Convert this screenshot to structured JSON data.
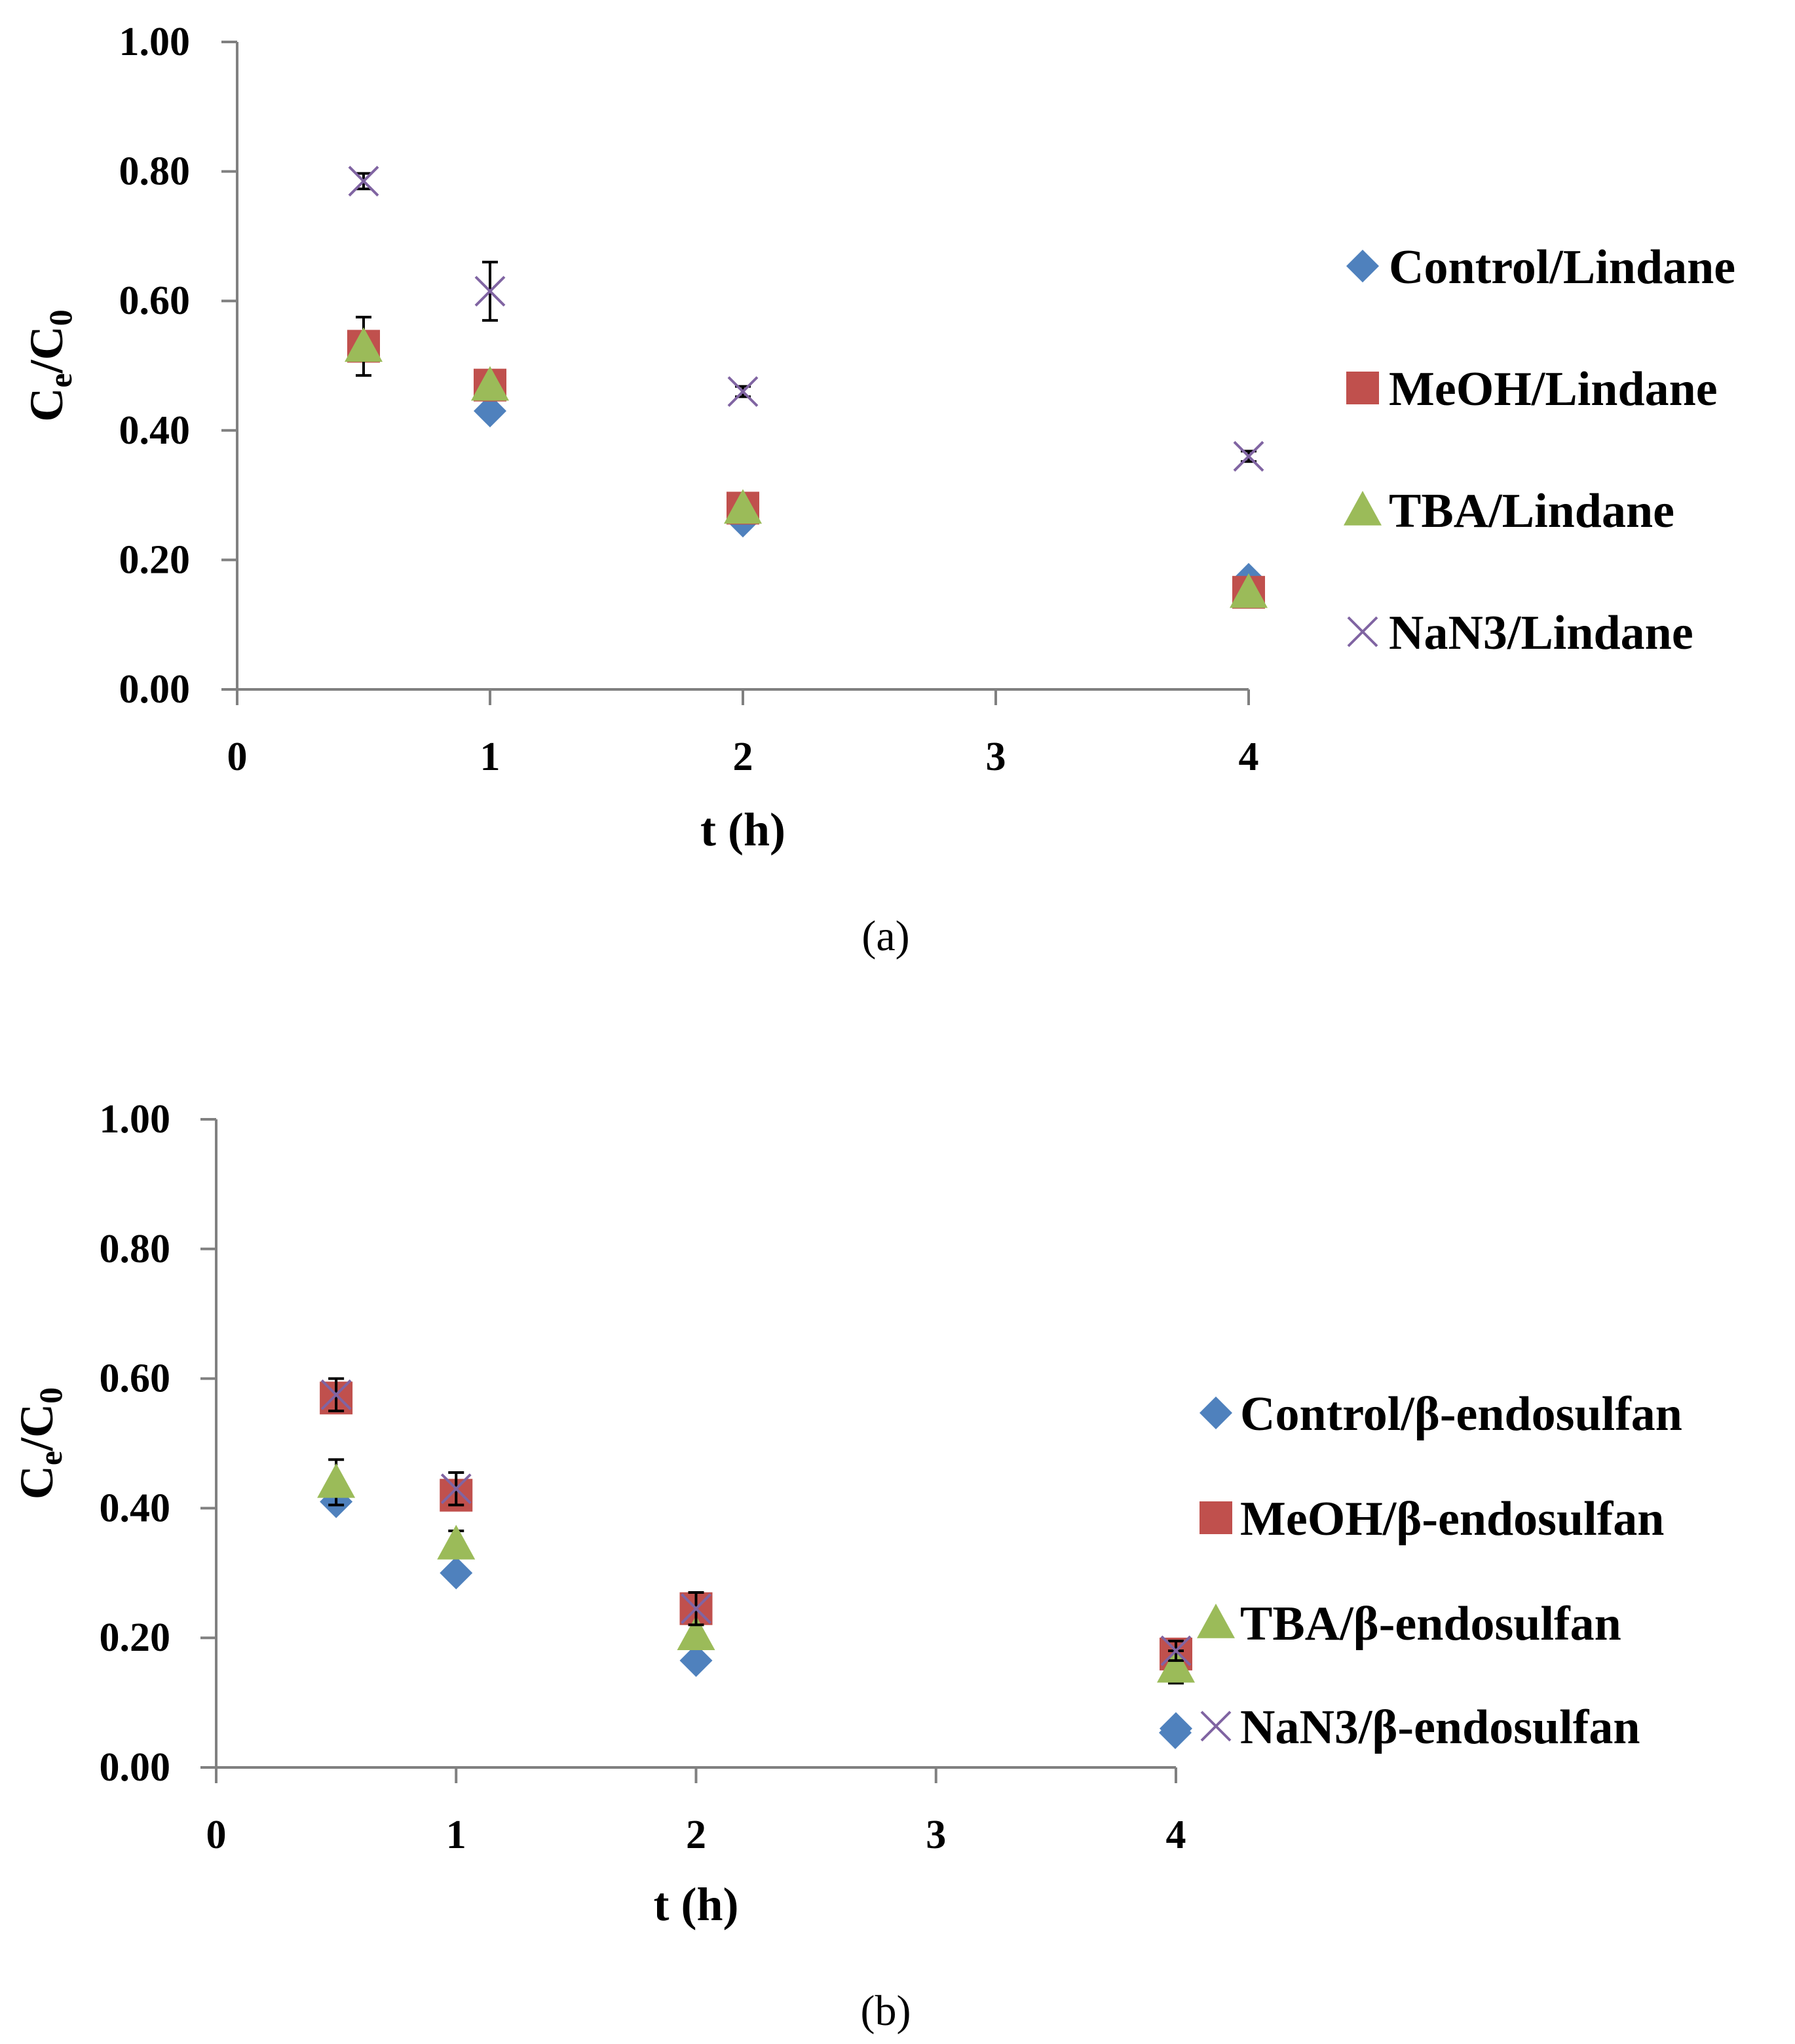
{
  "colors": {
    "control": "#4F81BD",
    "meoh": "#C0504D",
    "tba": "#9BBB59",
    "nan3": "#8064A2",
    "axis": "#808080"
  },
  "chart_data": [
    {
      "type": "scatter",
      "panel_label": "(a)",
      "title": "",
      "xlabel": "t (h)",
      "ylabel": "Ce/C0",
      "ylabel_main": "C",
      "ylabel_sub1": "e",
      "ylabel_mid": "/C",
      "ylabel_sub2": "0",
      "xlim": [
        0,
        4
      ],
      "ylim": [
        0,
        1
      ],
      "xticks": [
        "0",
        "1",
        "2",
        "3",
        "4"
      ],
      "yticks": [
        "0.00",
        "0.20",
        "0.40",
        "0.60",
        "0.80",
        "1.00"
      ],
      "legend_position": "right",
      "series": [
        {
          "name": "Control/Lindane",
          "marker": "diamond",
          "color_key": "control",
          "x": [
            0.5,
            1,
            2,
            4
          ],
          "y": [
            0.53,
            0.43,
            0.26,
            0.17
          ],
          "err": [
            0,
            0,
            0,
            0
          ]
        },
        {
          "name": "MeOH/Lindane",
          "marker": "square",
          "color_key": "meoh",
          "x": [
            0.5,
            1,
            2,
            4
          ],
          "y": [
            0.53,
            0.47,
            0.28,
            0.15
          ],
          "err": [
            0,
            0,
            0,
            0
          ]
        },
        {
          "name": "TBA/Lindane",
          "marker": "triangle",
          "color_key": "tba",
          "x": [
            0.5,
            1,
            2,
            4
          ],
          "y": [
            0.53,
            0.47,
            0.28,
            0.15
          ],
          "err": [
            0.045,
            0,
            0,
            0
          ]
        },
        {
          "name": "NaN3/Lindane",
          "marker": "x",
          "color_key": "nan3",
          "x": [
            0.5,
            1,
            2,
            4
          ],
          "y": [
            0.785,
            0.615,
            0.46,
            0.36
          ],
          "err": [
            0.012,
            0.045,
            0.008,
            0.008
          ]
        }
      ]
    },
    {
      "type": "scatter",
      "panel_label": "(b)",
      "title": "",
      "xlabel": "t (h)",
      "ylabel": "Ce/C0",
      "ylabel_main": "C",
      "ylabel_sub1": "e",
      "ylabel_mid": "/C",
      "ylabel_sub2": "0",
      "xlim": [
        0,
        4
      ],
      "ylim": [
        0,
        1
      ],
      "xticks": [
        "0",
        "1",
        "2",
        "3",
        "4"
      ],
      "yticks": [
        "0.00",
        "0.20",
        "0.40",
        "0.60",
        "0.80",
        "1.00"
      ],
      "legend_position": "right",
      "series": [
        {
          "name": "Control/β-endosulfan",
          "marker": "diamond",
          "color_key": "control",
          "x": [
            0.5,
            1,
            2,
            4
          ],
          "y": [
            0.41,
            0.3,
            0.165,
            0.06
          ],
          "err": [
            0,
            0,
            0,
            0
          ]
        },
        {
          "name": "MeOH/β-endosulfan",
          "marker": "square",
          "color_key": "meoh",
          "x": [
            0.5,
            1,
            2,
            4
          ],
          "y": [
            0.57,
            0.42,
            0.245,
            0.175
          ],
          "err": [
            0,
            0,
            0,
            0
          ]
        },
        {
          "name": "TBA/β-endosulfan",
          "marker": "triangle",
          "color_key": "tba",
          "x": [
            0.5,
            1,
            2,
            4
          ],
          "y": [
            0.44,
            0.345,
            0.205,
            0.155
          ],
          "err": [
            0.035,
            0.02,
            0,
            0.025
          ]
        },
        {
          "name": "NaN3/β-endosulfan",
          "marker": "x",
          "color_key": "nan3",
          "x": [
            0.5,
            1,
            2,
            4
          ],
          "y": [
            0.575,
            0.43,
            0.245,
            0.18
          ],
          "err": [
            0.025,
            0.025,
            0.025,
            0.015
          ]
        }
      ]
    }
  ]
}
